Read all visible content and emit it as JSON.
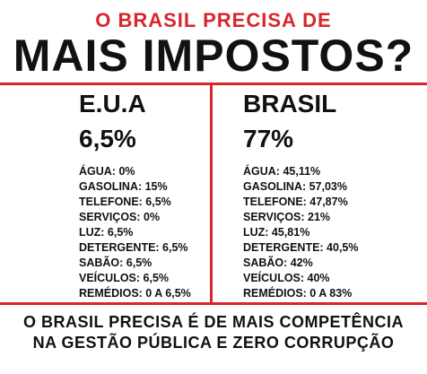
{
  "header": {
    "subtitle": "O BRASIL PRECISA DE",
    "title": "MAIS IMPOSTOS?"
  },
  "usa": {
    "name": "E.U.A",
    "total": "6,5%",
    "items": [
      "ÁGUA: 0%",
      "GASOLINA: 15%",
      "TELEFONE: 6,5%",
      "SERVIÇOS: 0%",
      "LUZ: 6,5%",
      "DETERGENTE: 6,5%",
      "SABÃO: 6,5%",
      "VEÍCULOS: 6,5%",
      "REMÉDIOS: 0 A 6,5%"
    ]
  },
  "brasil": {
    "name": "BRASIL",
    "total": "77%",
    "items": [
      "ÁGUA: 45,11%",
      "GASOLINA: 57,03%",
      "TELEFONE: 47,87%",
      "SERVIÇOS: 21%",
      "LUZ: 45,81%",
      "DETERGENTE: 40,5%",
      "SABÃO: 42%",
      "VEÍCULOS: 40%",
      "REMÉDIOS: 0 A 83%"
    ]
  },
  "footer": {
    "line1": "O BRASIL PRECISA É DE MAIS COMPETÊNCIA",
    "line2": "NA GESTÃO PÚBLICA E ZERO CORRUPÇÃO"
  },
  "colors": {
    "accent": "#d8262b",
    "text": "#111111",
    "background": "#ffffff"
  }
}
